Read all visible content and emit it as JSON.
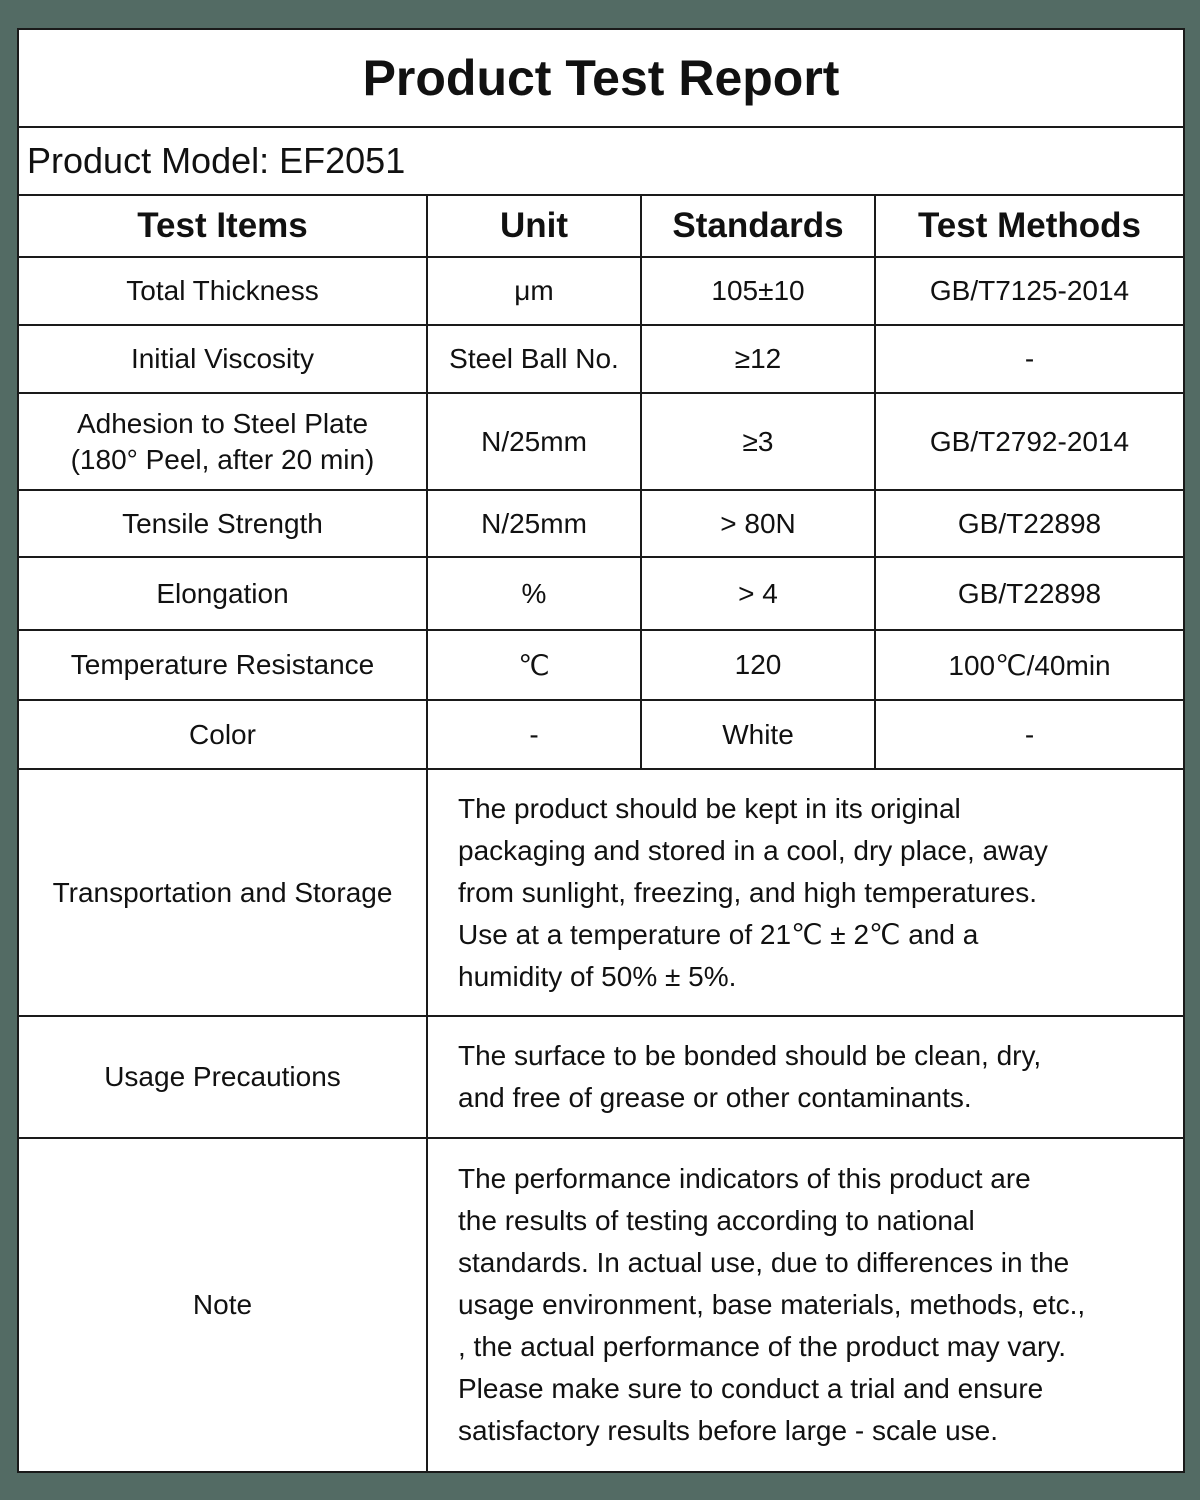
{
  "title": "Product Test Report",
  "product_model": "Product Model: EF2051",
  "headers": [
    "Test Items",
    "Unit",
    "Standards",
    "Test Methods"
  ],
  "rows": [
    {
      "item": "Total Thickness",
      "unit": "μm",
      "standard": "105±10",
      "method": "GB/T7125-2014"
    },
    {
      "item": "Initial Viscosity",
      "unit": "Steel Ball No.",
      "standard": "≥12",
      "method": "-"
    },
    {
      "item": "Adhesion to Steel Plate",
      "item2": "(180° Peel, after 20 min)",
      "unit": "N/25mm",
      "standard": "≥3",
      "method": "GB/T2792-2014"
    },
    {
      "item": "Tensile Strength",
      "unit": "N/25mm",
      "standard": "> 80N",
      "method": "GB/T22898"
    },
    {
      "item": "Elongation",
      "unit": "%",
      "standard": "> 4",
      "method": "GB/T22898"
    },
    {
      "item": "Temperature Resistance",
      "unit": "℃",
      "standard": "120",
      "method": "100℃/40min"
    },
    {
      "item": "Color",
      "unit": "-",
      "standard": "White",
      "method": "-"
    }
  ],
  "notes": [
    {
      "label": "Transportation and Storage",
      "lines": [
        "The product should be kept in its original",
        "packaging and stored in a cool, dry place, away",
        "from sunlight, freezing, and high temperatures.",
        "Use at a temperature of 21℃ ± 2℃ and a",
        "humidity of 50% ± 5%."
      ]
    },
    {
      "label": "Usage Precautions",
      "lines": [
        "The surface to be bonded should be clean, dry,",
        "and free of grease or other contaminants."
      ]
    },
    {
      "label": "Note",
      "lines": [
        "The performance indicators of this product are",
        "the results of testing according to national",
        "standards. In actual use, due to differences in the",
        "usage environment, base materials, methods, etc.,",
        ", the actual performance of the product may vary.",
        "Please make sure to conduct a trial and ensure",
        "satisfactory results before large - scale use."
      ]
    }
  ]
}
